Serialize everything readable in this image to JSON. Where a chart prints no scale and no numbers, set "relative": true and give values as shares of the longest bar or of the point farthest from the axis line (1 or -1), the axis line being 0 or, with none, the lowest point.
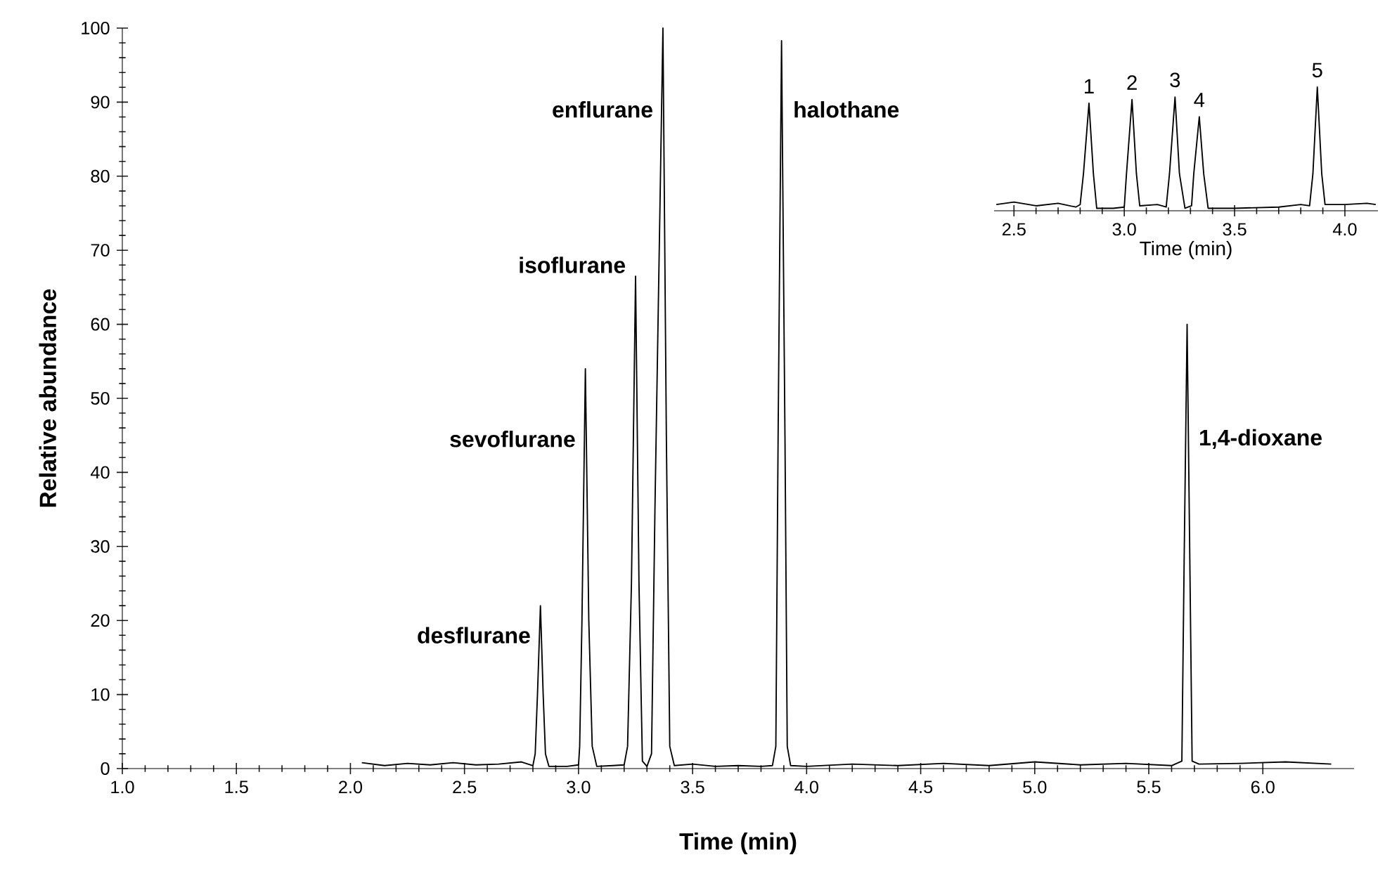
{
  "chart_data": [
    {
      "type": "line",
      "xlabel": "Time (min)",
      "ylabel": "Relative abundance",
      "xlim": [
        1.0,
        6.4
      ],
      "ylim": [
        0,
        100
      ],
      "xticks": [
        {
          "value": 1.0,
          "label": "1.0"
        },
        {
          "value": 1.5,
          "label": "1.5"
        },
        {
          "value": 2.0,
          "label": "2.0"
        },
        {
          "value": 2.5,
          "label": "2.5"
        },
        {
          "value": 3.0,
          "label": "3.0"
        },
        {
          "value": 3.5,
          "label": "3.5"
        },
        {
          "value": 4.0,
          "label": "4.0"
        },
        {
          "value": 4.5,
          "label": "4.5"
        },
        {
          "value": 5.0,
          "label": "5.0"
        },
        {
          "value": 5.5,
          "label": "5.5"
        },
        {
          "value": 6.0,
          "label": "6.0"
        }
      ],
      "yticks": [
        0,
        10,
        20,
        30,
        40,
        50,
        60,
        70,
        80,
        90,
        100
      ],
      "series": [
        {
          "color": "#000000",
          "x": [
            2.05,
            2.15,
            2.25,
            2.35,
            2.45,
            2.55,
            2.65,
            2.75,
            2.8,
            2.81,
            2.82,
            2.833,
            2.845,
            2.855,
            2.87,
            2.95,
            3.0,
            3.005,
            3.015,
            3.03,
            3.045,
            3.06,
            3.08,
            3.15,
            3.2,
            3.215,
            3.232,
            3.25,
            3.265,
            3.28,
            3.3,
            3.32,
            3.335,
            3.37,
            3.385,
            3.4,
            3.42,
            3.5,
            3.6,
            3.7,
            3.8,
            3.85,
            3.865,
            3.875,
            3.89,
            3.905,
            3.915,
            3.93,
            4.0,
            4.2,
            4.4,
            4.6,
            4.8,
            5.0,
            5.2,
            5.4,
            5.6,
            5.645,
            5.655,
            5.668,
            5.68,
            5.69,
            5.72,
            5.9,
            6.1,
            6.3
          ],
          "values": [
            0.8,
            0.4,
            0.7,
            0.5,
            0.8,
            0.5,
            0.6,
            0.9,
            0.4,
            2,
            10,
            22,
            10,
            2,
            0.3,
            0.3,
            0.5,
            3,
            20,
            54,
            20,
            3,
            0.3,
            0.4,
            0.5,
            3,
            25,
            66.5,
            25,
            1,
            0.3,
            2,
            35,
            100,
            45,
            3,
            0.4,
            0.6,
            0.3,
            0.4,
            0.3,
            0.4,
            3,
            45,
            98.3,
            45,
            3,
            0.4,
            0.3,
            0.6,
            0.4,
            0.7,
            0.4,
            0.9,
            0.5,
            0.7,
            0.4,
            1,
            28,
            60,
            28,
            1,
            0.6,
            0.7,
            0.9,
            0.6
          ]
        }
      ],
      "annotations": [
        {
          "text": "desflurane",
          "x": 2.833,
          "y": 17
        },
        {
          "text": "sevoflurane",
          "x": 3.03,
          "y": 43.5
        },
        {
          "text": "isoflurane",
          "x": 3.25,
          "y": 67
        },
        {
          "text": "enflurane",
          "x": 3.37,
          "y": 88
        },
        {
          "text": "halothane",
          "x": 3.89,
          "y": 88
        },
        {
          "text": "1,4-dioxane",
          "x": 5.668,
          "y": 43.5
        }
      ]
    },
    {
      "type": "line",
      "relative": true,
      "xlabel": "Time (min)",
      "tick_labels": "x",
      "xlim": [
        2.41,
        4.15
      ],
      "xticks": [
        {
          "value": 2.5,
          "label": "2.5"
        },
        {
          "value": 3.0,
          "label": "3.0"
        },
        {
          "value": 3.5,
          "label": "3.5"
        },
        {
          "value": 4.0,
          "label": "4.0"
        }
      ],
      "series": [
        {
          "color": "#000000",
          "x": [
            2.42,
            2.5,
            2.6,
            2.7,
            2.78,
            2.8,
            2.815,
            2.84,
            2.86,
            2.875,
            2.95,
            3.0,
            3.01,
            3.035,
            3.055,
            3.07,
            3.15,
            3.19,
            3.205,
            3.23,
            3.25,
            3.275,
            3.305,
            3.315,
            3.34,
            3.36,
            3.38,
            3.5,
            3.7,
            3.8,
            3.84,
            3.855,
            3.875,
            3.895,
            3.91,
            4.0,
            4.1,
            4.14
          ],
          "values": [
            0.05,
            0.07,
            0.04,
            0.06,
            0.03,
            0.05,
            0.3,
            0.87,
            0.3,
            0.02,
            0.02,
            0.03,
            0.3,
            0.9,
            0.3,
            0.04,
            0.05,
            0.03,
            0.3,
            0.92,
            0.3,
            0.02,
            0.04,
            0.3,
            0.76,
            0.3,
            0.02,
            0.02,
            0.03,
            0.05,
            0.04,
            0.3,
            1,
            0.3,
            0.05,
            0.05,
            0.06,
            0.05
          ]
        }
      ],
      "annotations": [
        {
          "text": "1",
          "x": 2.84,
          "y": 0.87
        },
        {
          "text": "2",
          "x": 3.035,
          "y": 0.9
        },
        {
          "text": "3",
          "x": 3.23,
          "y": 0.92
        },
        {
          "text": "4",
          "x": 3.34,
          "y": 0.76
        },
        {
          "text": "5",
          "x": 3.875,
          "y": 1
        }
      ]
    }
  ]
}
